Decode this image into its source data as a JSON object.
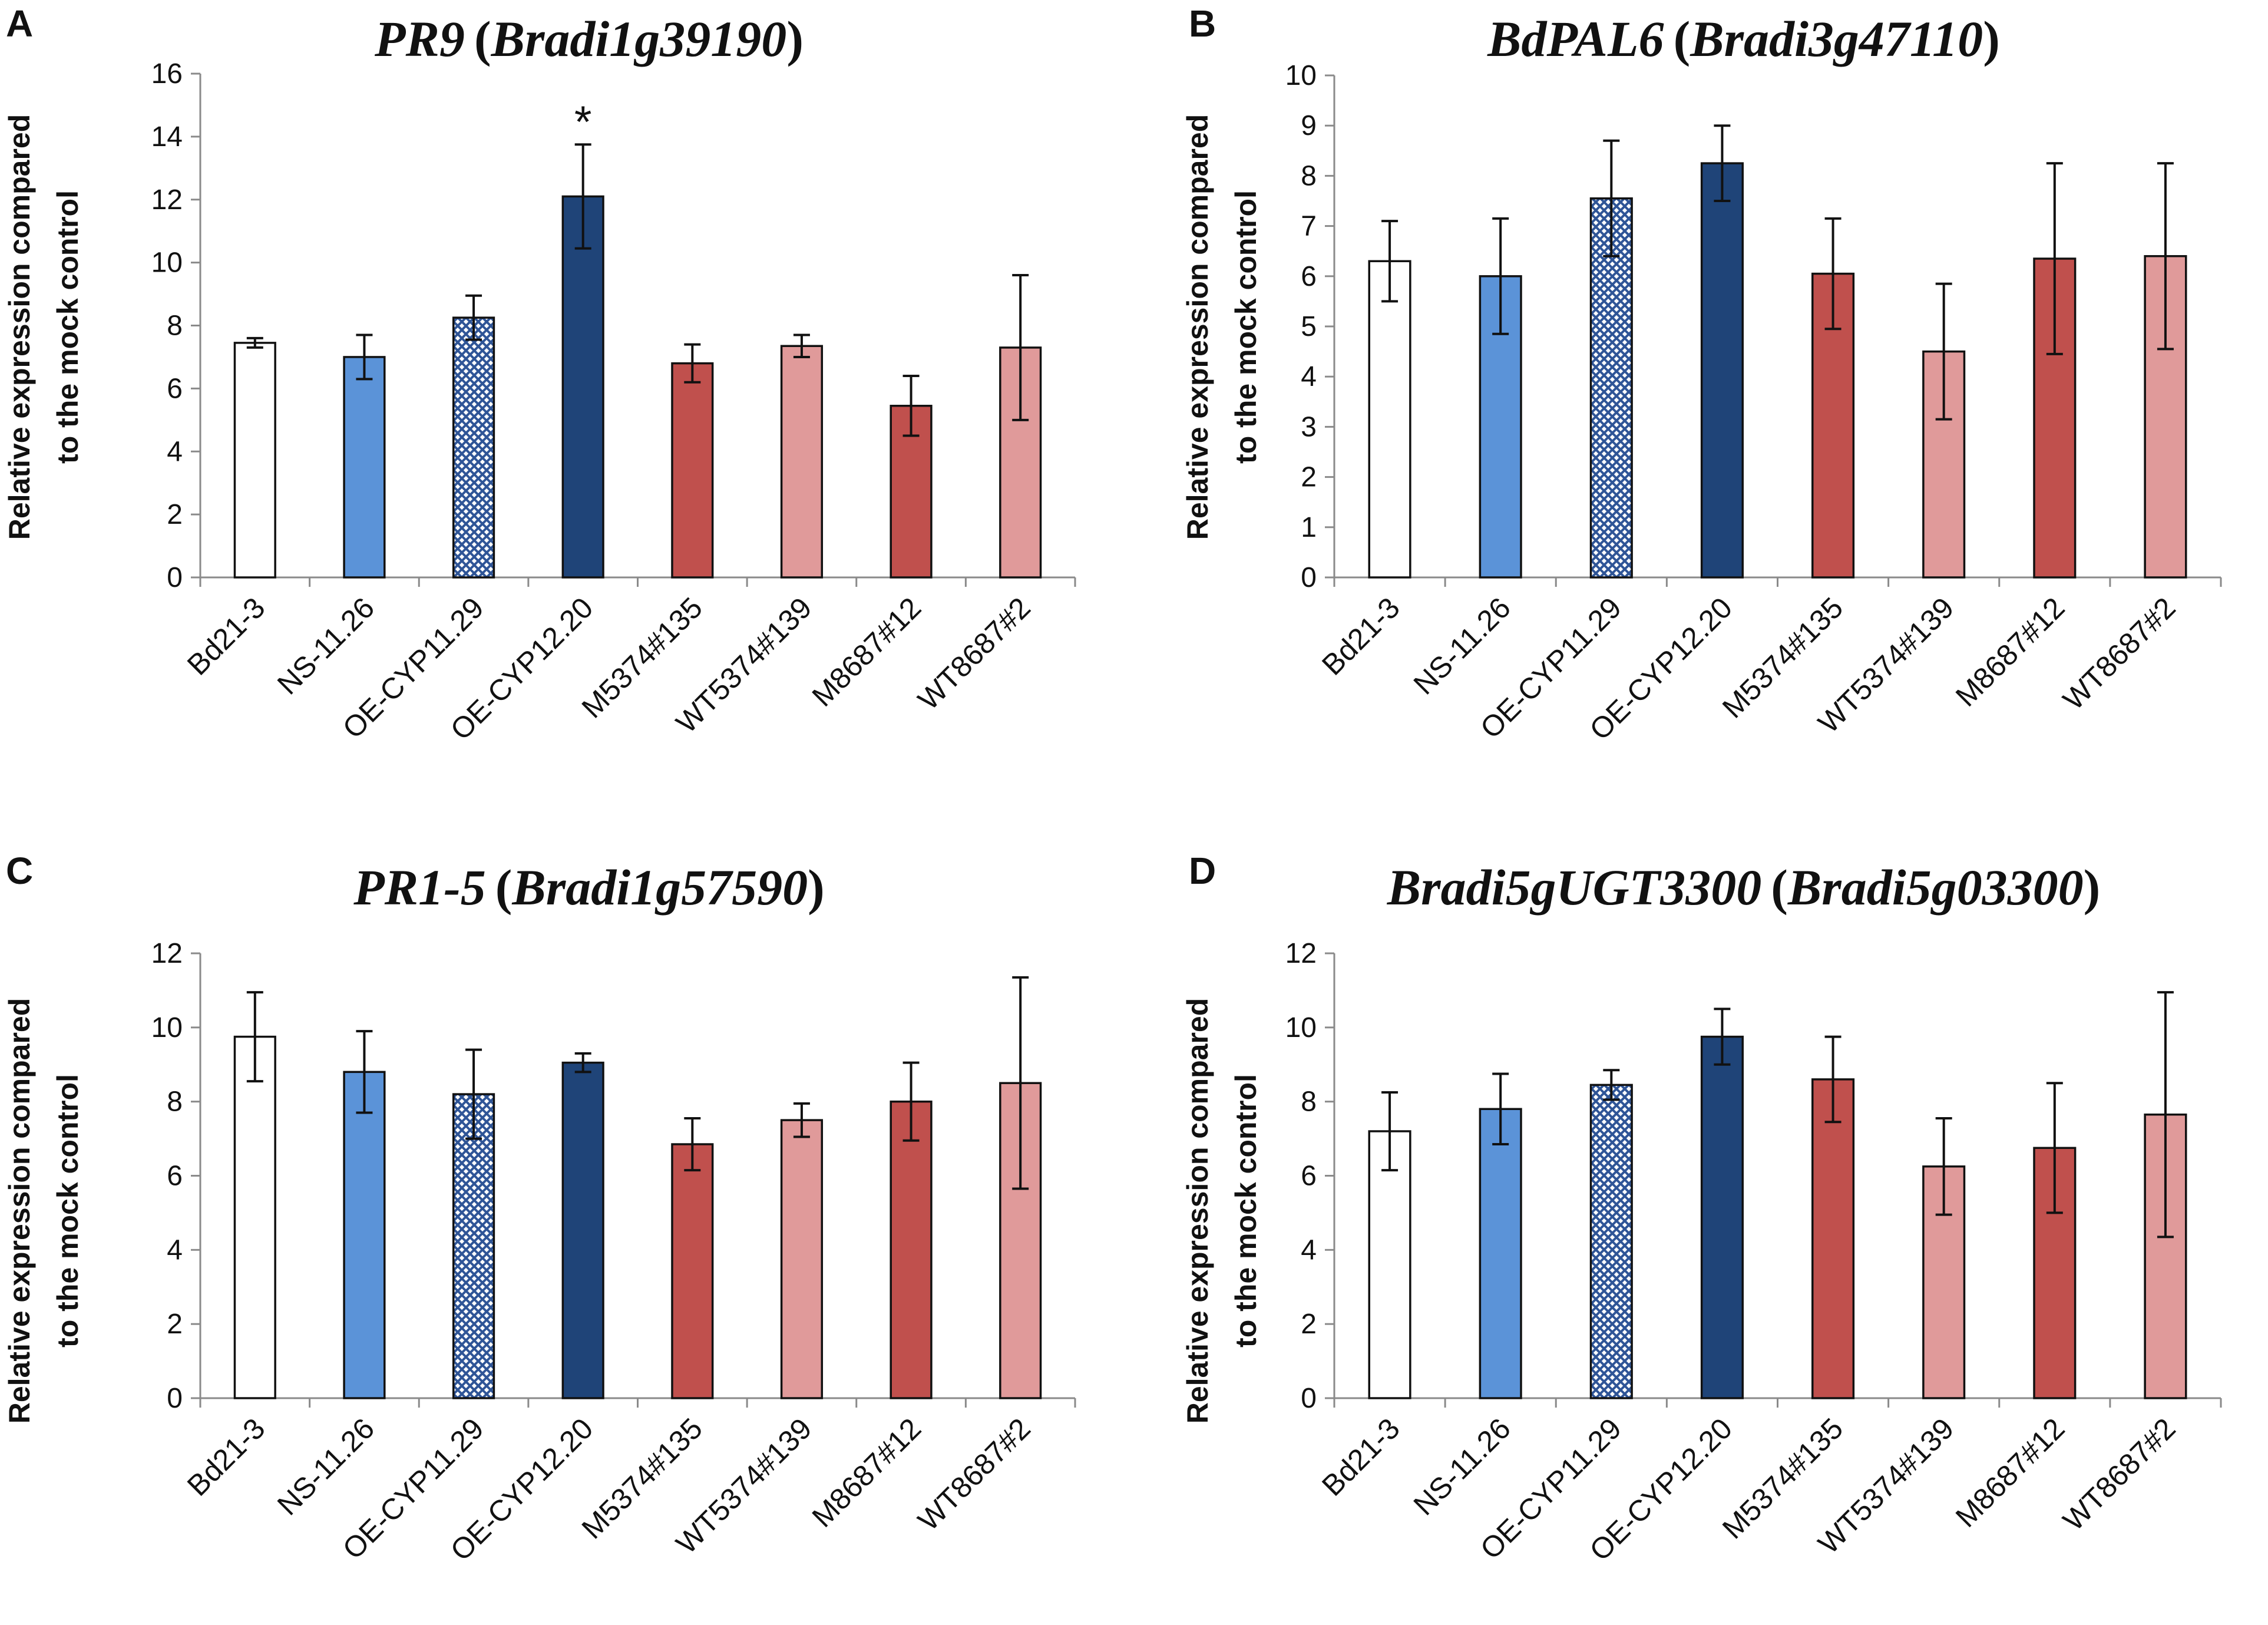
{
  "figure": {
    "colors": {
      "white": "#ffffff",
      "light_blue": "#5b93d8",
      "hatched_blue": "#2f5597",
      "dark_blue": "#1f4478",
      "red": "#c0504d",
      "pink": "#e09a9a"
    }
  },
  "chart_data": [
    {
      "panel": "A",
      "type": "bar",
      "title_gene": "PR9",
      "title_id": "(",
      "title_locus": "Bradi1g39190",
      "title_close": ")",
      "ylabel_line1": "Relative expression compared",
      "ylabel_line2": "to the mock control",
      "xlabel": "",
      "ylim": [
        0,
        16
      ],
      "yticks": [
        0,
        2,
        4,
        6,
        8,
        10,
        12,
        14,
        16
      ],
      "categories": [
        "Bd21-3",
        "NS-11.26",
        "OE-CYP11.29",
        "OE-CYP12.20",
        "M5374#135",
        "WT5374#139",
        "M8687#12",
        "WT8687#2"
      ],
      "values": [
        7.45,
        7.0,
        8.25,
        12.1,
        6.8,
        7.35,
        5.45,
        7.3
      ],
      "errors": [
        0.15,
        0.7,
        0.7,
        1.65,
        0.6,
        0.35,
        0.95,
        2.3
      ],
      "styles": [
        "white",
        "light_blue",
        "hatched_blue",
        "dark_blue",
        "red",
        "pink",
        "red",
        "pink"
      ],
      "annotations": [
        {
          "category": "OE-CYP12.20",
          "text": "*"
        }
      ]
    },
    {
      "panel": "B",
      "type": "bar",
      "title_gene": "BdPAL6",
      "title_id": "(",
      "title_locus": "Bradi3g47110",
      "title_close": ")",
      "ylabel_line1": "Relative expression compared",
      "ylabel_line2": "to the mock control",
      "xlabel": "",
      "ylim": [
        0,
        10
      ],
      "yticks": [
        0,
        1,
        2,
        3,
        4,
        5,
        6,
        7,
        8,
        9,
        10
      ],
      "categories": [
        "Bd21-3",
        "NS-11.26",
        "OE-CYP11.29",
        "OE-CYP12.20",
        "M5374#135",
        "WT5374#139",
        "M8687#12",
        "WT8687#2"
      ],
      "values": [
        6.3,
        6.0,
        7.55,
        8.25,
        6.05,
        4.5,
        6.35,
        6.4
      ],
      "errors": [
        0.8,
        1.15,
        1.15,
        0.75,
        1.1,
        1.35,
        1.9,
        1.85
      ],
      "styles": [
        "white",
        "light_blue",
        "hatched_blue",
        "dark_blue",
        "red",
        "pink",
        "red",
        "pink"
      ],
      "annotations": []
    },
    {
      "panel": "C",
      "type": "bar",
      "title_gene": "PR1-5",
      "title_id": "(",
      "title_locus": "Bradi1g57590",
      "title_close": ")",
      "ylabel_line1": "Relative expression compared",
      "ylabel_line2": "to the mock control",
      "xlabel": "",
      "ylim": [
        0,
        12
      ],
      "yticks": [
        0,
        2,
        4,
        6,
        8,
        10,
        12
      ],
      "categories": [
        "Bd21-3",
        "NS-11.26",
        "OE-CYP11.29",
        "OE-CYP12.20",
        "M5374#135",
        "WT5374#139",
        "M8687#12",
        "WT8687#2"
      ],
      "values": [
        9.75,
        8.8,
        8.2,
        9.05,
        6.85,
        7.5,
        8.0,
        8.5
      ],
      "errors": [
        1.2,
        1.1,
        1.2,
        0.25,
        0.7,
        0.45,
        1.05,
        2.85
      ],
      "styles": [
        "white",
        "light_blue",
        "hatched_blue",
        "dark_blue",
        "red",
        "pink",
        "red",
        "pink"
      ],
      "annotations": []
    },
    {
      "panel": "D",
      "type": "bar",
      "title_gene": "Bradi5gUGT3300",
      "title_id": "(",
      "title_locus": "Bradi5g03300",
      "title_close": ")",
      "ylabel_line1": "Relative expression compared",
      "ylabel_line2": "to the mock control",
      "xlabel": "",
      "ylim": [
        0,
        12
      ],
      "yticks": [
        0,
        2,
        4,
        6,
        8,
        10,
        12
      ],
      "categories": [
        "Bd21-3",
        "NS-11.26",
        "OE-CYP11.29",
        "OE-CYP12.20",
        "M5374#135",
        "WT5374#139",
        "M8687#12",
        "WT8687#2"
      ],
      "values": [
        7.2,
        7.8,
        8.45,
        9.75,
        8.6,
        6.25,
        6.75,
        7.65
      ],
      "errors": [
        1.05,
        0.95,
        0.4,
        0.75,
        1.15,
        1.3,
        1.75,
        3.3
      ],
      "styles": [
        "white",
        "light_blue",
        "hatched_blue",
        "dark_blue",
        "red",
        "pink",
        "red",
        "pink"
      ],
      "annotations": []
    }
  ]
}
